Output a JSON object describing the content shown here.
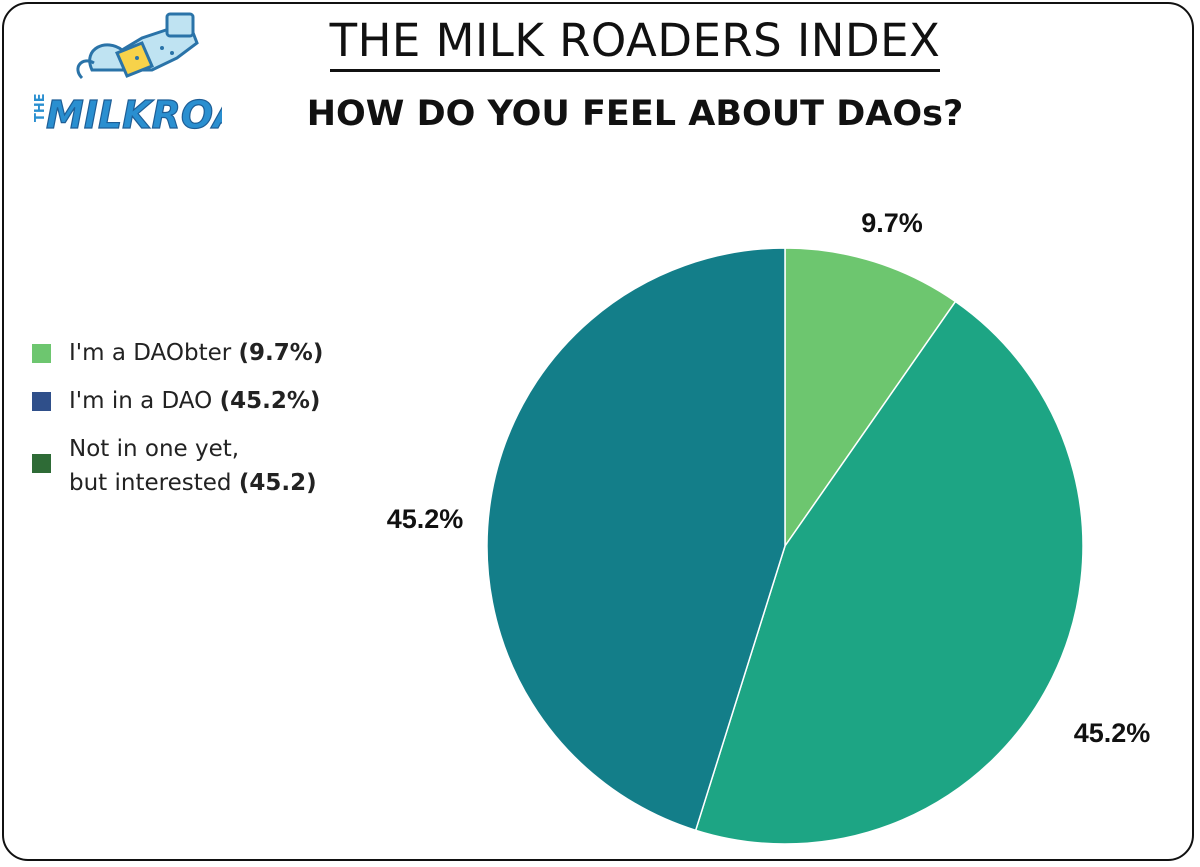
{
  "header": {
    "title": "THE MILK ROADERS INDEX",
    "subtitle": "HOW DO YOU FEEL ABOUT DAOs?"
  },
  "logo": {
    "small_text": "THE",
    "brand_text": "MILKROAD",
    "icon": "milk-carton-mascot-icon"
  },
  "legend": [
    {
      "text": "I'm a DAObter ",
      "bold": "(9.7%)",
      "color": "#6DC66F"
    },
    {
      "text": "I'm in a DAO ",
      "bold": "(45.2%)",
      "color": "#2F4F8A"
    },
    {
      "line1": "Not in one yet,",
      "line2": "but interested ",
      "bold": "(45.2)",
      "color": "#2E6B36"
    }
  ],
  "chart_data": {
    "type": "pie",
    "title": "HOW DO YOU FEEL ABOUT DAOs?",
    "slices": [
      {
        "label": "I'm a DAObter",
        "value": 9.7,
        "display": "9.7%",
        "color": "#6DC66F"
      },
      {
        "label": "I'm in a DAO",
        "value": 45.2,
        "display": "45.2%",
        "color": "#1DA584"
      },
      {
        "label": "Not in one yet, but interested",
        "value": 45.2,
        "display": "45.2%",
        "color": "#137E89"
      }
    ],
    "start": "12 o'clock",
    "direction": "clockwise"
  }
}
